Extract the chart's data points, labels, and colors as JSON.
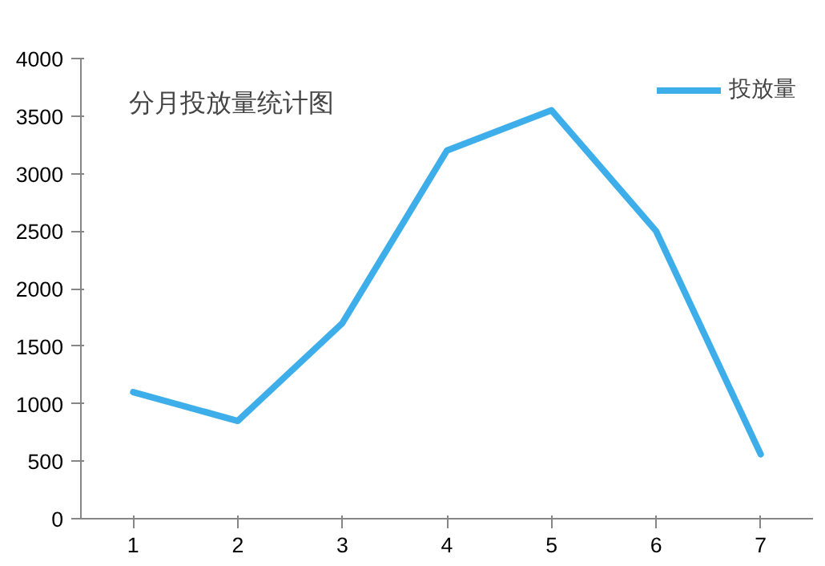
{
  "chart_data": {
    "type": "line",
    "title": "分月投放量统计图",
    "categories": [
      "1",
      "2",
      "3",
      "4",
      "5",
      "6",
      "7"
    ],
    "series": [
      {
        "name": "投放量",
        "color": "#3daee9",
        "values": [
          1100,
          850,
          1700,
          3200,
          3550,
          2500,
          560
        ]
      }
    ],
    "ylim": [
      0,
      4000
    ],
    "yticks": [
      0,
      500,
      1000,
      1500,
      2000,
      2500,
      3000,
      3500,
      4000
    ],
    "grid": false,
    "legend": "top right",
    "marker": "none",
    "line_style": "solid"
  }
}
